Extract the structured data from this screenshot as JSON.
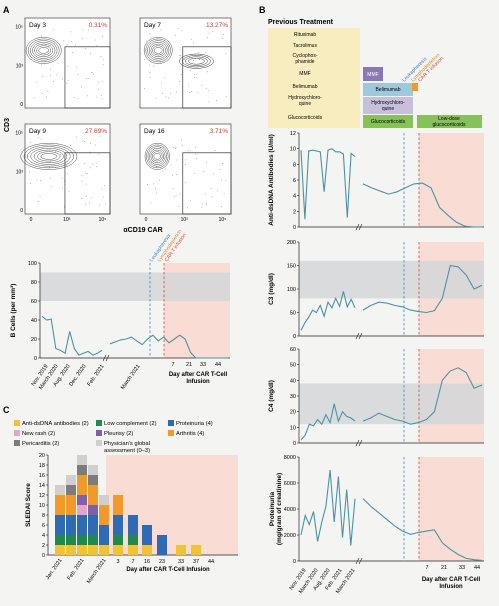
{
  "panels": {
    "a": "A",
    "b": "B",
    "c": "C"
  },
  "flow": {
    "ylabel": "CD3",
    "xlabel": "αCD19 CAR",
    "ticks": [
      "0",
      "10³",
      "10⁵"
    ],
    "plots": [
      {
        "day": "Day 3",
        "pct": "0.31%"
      },
      {
        "day": "Day 7",
        "pct": "13.27%"
      },
      {
        "day": "Day 9",
        "pct": "27.69%"
      },
      {
        "day": "Day 16",
        "pct": "3.71%"
      }
    ]
  },
  "annotations": {
    "leukapheresis": "Leukapheresis",
    "lymphodepletion": "Lymphodepletion",
    "car_t_infusion": "CAR T infusion"
  },
  "left_x_dates": [
    "Nov. 2019",
    "March 2020",
    "Aug. 2020",
    "Dec. 2020",
    "Feb. 2021",
    "March 2021"
  ],
  "day_ticks": [
    "7",
    "21",
    "33",
    "44"
  ],
  "day_axis_label": "Day after CAR T-Cell\nInfusion",
  "c_day_axis_label": "Day after CAR T-Cell Infusion",
  "treatment": {
    "title": "Previous Treatment",
    "previous": [
      "Rituximab",
      "Tacrolimus",
      "Cyclophos-\nphamide",
      "MMF",
      "Belimumab",
      "Hydroxychloro-\nquine",
      "Glucocorticoids"
    ],
    "current": {
      "mmf": "MMF",
      "belimumab": "Belimumab",
      "hcq": "Hydroxychloro-\nquine",
      "gluco": "Glucocorticoids",
      "lowdose": "Low-dose\nglucocorticoids"
    },
    "colors": {
      "prev": "#f7edbe",
      "mmf": "#8b77b6",
      "belimumab": "#9ec9da",
      "hcq": "#c9bedc",
      "gluco": "#86c15a"
    }
  },
  "colors": {
    "line": "#4a93a7",
    "grey_band": "#d4d6d8",
    "pink": "#f9ddd5",
    "blue_dash": "#3a86c8",
    "red_dash": "#d14a3a",
    "pct_red": "#c9402f"
  },
  "chart_data": [
    {
      "type": "line",
      "ylabel": "B Cells (per mm³)",
      "ylim": [
        0,
        100
      ],
      "yticks": [
        0,
        20,
        40,
        60,
        80,
        100
      ],
      "band": [
        60,
        90
      ],
      "axis_break": true,
      "pre_series": [
        {
          "values": [
            44,
            40,
            41,
            10,
            8,
            5,
            28,
            10,
            3,
            5,
            7,
            3,
            5,
            8
          ]
        }
      ],
      "post_series": [
        {
          "values": [
            15,
            17,
            19,
            20,
            22,
            18,
            14,
            20,
            24,
            18,
            22,
            16,
            20,
            24,
            20,
            6,
            0,
            0,
            0,
            0,
            0,
            0,
            0
          ]
        }
      ]
    },
    {
      "type": "line",
      "ylabel": "Anti-dsDNA Antibodies (U/ml)",
      "ylim": [
        0,
        12
      ],
      "yticks": [
        0,
        2,
        4,
        6,
        8,
        10,
        12
      ],
      "pre_series": [
        {
          "values": [
            9.8,
            1,
            9.7,
            9.8,
            9.7,
            9.6,
            4.5,
            9.8,
            10.0,
            9.6,
            9.6,
            9.3,
            1.2,
            9.4,
            9.0
          ]
        }
      ],
      "post_series": [
        {
          "values": [
            5.5,
            5.0,
            4.6,
            4.2,
            4.5,
            5.0,
            5.5,
            5.6,
            5.0,
            2.5,
            1.5,
            0.6,
            0.1,
            0.0,
            0.0
          ]
        }
      ]
    },
    {
      "type": "line",
      "ylabel": "C3 (mg/dl)",
      "ylim": [
        0,
        200
      ],
      "yticks": [
        0,
        50,
        100,
        150,
        200
      ],
      "band": [
        80,
        160
      ],
      "pre_series": [
        {
          "values": [
            12,
            28,
            40,
            55,
            50,
            65,
            42,
            72,
            60,
            80,
            63,
            95,
            62,
            78,
            60
          ]
        }
      ],
      "post_series": [
        {
          "values": [
            55,
            65,
            72,
            70,
            65,
            62,
            55,
            52,
            50,
            54,
            80,
            150,
            147,
            130,
            100,
            108
          ]
        }
      ]
    },
    {
      "type": "line",
      "ylabel": "C4 (mg/dl)",
      "ylim": [
        0,
        60
      ],
      "yticks": [
        0,
        10,
        20,
        30,
        40,
        50,
        60
      ],
      "band": [
        12,
        38
      ],
      "pre_series": [
        {
          "values": [
            2,
            5,
            12,
            11,
            15,
            12,
            18,
            13,
            25,
            14,
            20,
            17,
            16,
            14
          ]
        }
      ],
      "post_series": [
        {
          "values": [
            14,
            16,
            19,
            17,
            15,
            14,
            12,
            13,
            15,
            20,
            40,
            46,
            48,
            45,
            35,
            37
          ]
        }
      ]
    },
    {
      "type": "line",
      "ylabel": "Proteinuria\n(mg/gram of creatinine)",
      "ylim": [
        0,
        8000
      ],
      "yticks": [
        0,
        2000,
        4000,
        6000,
        8000
      ],
      "pre_series": [
        {
          "values": [
            2000,
            3500,
            2800,
            3800,
            1500,
            3000,
            4200,
            7000,
            3000,
            6500,
            1800,
            5500,
            1200,
            4800
          ]
        }
      ],
      "post_series": [
        {
          "values": [
            4800,
            4200,
            3700,
            3200,
            2700,
            2300,
            2050,
            2200,
            2300,
            2400,
            1400,
            900,
            500,
            200,
            100,
            50
          ]
        }
      ]
    },
    {
      "type": "bar",
      "stacked": true,
      "ylabel": "SLEDAI Score",
      "ylim": [
        0,
        20
      ],
      "yticks": [
        0,
        2,
        4,
        6,
        8,
        10,
        12,
        14,
        16,
        18,
        20
      ],
      "categories": [
        "Jan. 2021",
        "",
        "Feb. 2021",
        "",
        "March 2021",
        "3",
        "7",
        "16",
        "23",
        "33",
        "37",
        "44"
      ],
      "series": [
        {
          "name": "Anti-dsDNA antibodies (2)",
          "color": "#f2c230",
          "values": [
            2,
            2,
            2,
            2,
            2,
            2,
            2,
            2,
            0,
            2,
            2,
            0
          ]
        },
        {
          "name": "Low complement (2)",
          "color": "#1f8a4c",
          "values": [
            2,
            2,
            2,
            2,
            0,
            2,
            2,
            0,
            0,
            0,
            0,
            0
          ]
        },
        {
          "name": "Proteinuria (4)",
          "color": "#2e6bb4",
          "values": [
            4,
            4,
            4,
            4,
            4,
            4,
            4,
            4,
            4,
            0,
            0,
            0
          ]
        },
        {
          "name": "New rash (2)",
          "color": "#e3a5c8",
          "values": [
            0,
            0,
            2,
            0,
            0,
            0,
            0,
            0,
            0,
            0,
            0,
            0
          ]
        },
        {
          "name": "Pleurisy (2)",
          "color": "#8060a8",
          "values": [
            0,
            0,
            2,
            2,
            0,
            0,
            0,
            0,
            0,
            0,
            0,
            0
          ]
        },
        {
          "name": "Arthritis (4)",
          "color": "#f29a28",
          "values": [
            4,
            4,
            4,
            4,
            4,
            4,
            0,
            0,
            0,
            0,
            0,
            0
          ]
        },
        {
          "name": "Pericarditis (2)",
          "color": "#7c7c7c",
          "values": [
            0,
            2,
            2,
            2,
            0,
            0,
            0,
            0,
            0,
            0,
            0,
            0
          ]
        },
        {
          "name": "Physician's global\nassessment (0–3)",
          "color": "#cfcfcf",
          "values": [
            2,
            2,
            2,
            2,
            2,
            0,
            0,
            0,
            0,
            0,
            0,
            0
          ]
        }
      ]
    }
  ]
}
